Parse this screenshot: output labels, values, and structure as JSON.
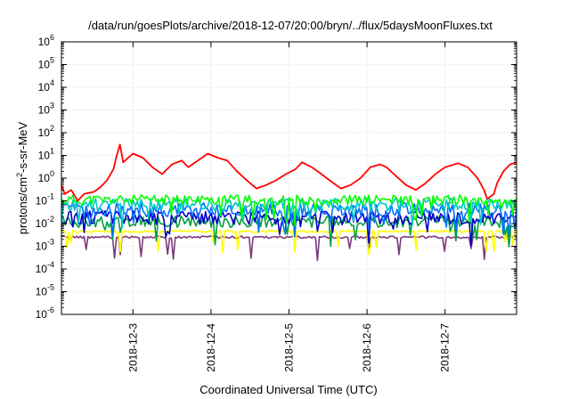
{
  "chart_data": {
    "type": "line",
    "title": "/data/run/goesPlots/archive/2018-12-07/20:00/bryn/../flux/5daysMoonFluxes.txt",
    "xlabel": "Coordinated Universal Time (UTC)",
    "ylabel": "protons/cm²-s-sr-MeV",
    "ylabel_parts": {
      "base": "protons/cm",
      "sup": "2",
      "rest": "-s-sr-MeV"
    },
    "yscale": "log",
    "ylim": [
      1e-06,
      1000000.0
    ],
    "y_ticks": [
      {
        "mant": "10",
        "exp": "-6",
        "v": -6
      },
      {
        "mant": "10",
        "exp": "-5",
        "v": -5
      },
      {
        "mant": "10",
        "exp": "-4",
        "v": -4
      },
      {
        "mant": "10",
        "exp": "-3",
        "v": -3
      },
      {
        "mant": "10",
        "exp": "-2",
        "v": -2
      },
      {
        "mant": "10",
        "exp": "-1",
        "v": -1
      },
      {
        "mant": "10",
        "exp": "0",
        "v": 0
      },
      {
        "mant": "10",
        "exp": "1",
        "v": 1
      },
      {
        "mant": "10",
        "exp": "2",
        "v": 2
      },
      {
        "mant": "10",
        "exp": "3",
        "v": 3
      },
      {
        "mant": "10",
        "exp": "4",
        "v": 4
      },
      {
        "mant": "10",
        "exp": "5",
        "v": 5
      },
      {
        "mant": "10",
        "exp": "6",
        "v": 6
      }
    ],
    "xlim": [
      "2018-12-02T02:00",
      "2018-12-07T22:00"
    ],
    "x_ticks": [
      "2018-12-3",
      "2018-12-4",
      "2018-12-5",
      "2018-12-6",
      "2018-12-7"
    ],
    "grid": true,
    "series": [
      {
        "color": "#ff0000",
        "points": [
          [
            "2018-12-02T02:00",
            0.5
          ],
          [
            "2018-12-02T03:00",
            0.2
          ],
          [
            "2018-12-02T05:00",
            0.3
          ],
          [
            "2018-12-02T07:00",
            0.1
          ],
          [
            "2018-12-02T09:00",
            0.2
          ],
          [
            "2018-12-02T12:00",
            0.25
          ],
          [
            "2018-12-02T14:00",
            0.4
          ],
          [
            "2018-12-02T16:00",
            0.8
          ],
          [
            "2018-12-02T18:00",
            2.5
          ],
          [
            "2018-12-02T19:00",
            10
          ],
          [
            "2018-12-02T20:00",
            30
          ],
          [
            "2018-12-02T21:00",
            5
          ],
          [
            "2018-12-03T00:00",
            12
          ],
          [
            "2018-12-03T03:00",
            8
          ],
          [
            "2018-12-03T06:00",
            3
          ],
          [
            "2018-12-03T09:00",
            1.5
          ],
          [
            "2018-12-03T12:00",
            4
          ],
          [
            "2018-12-03T15:00",
            6
          ],
          [
            "2018-12-03T17:00",
            3
          ],
          [
            "2018-12-03T20:00",
            6
          ],
          [
            "2018-12-03T23:00",
            12
          ],
          [
            "2018-12-04T02:00",
            8
          ],
          [
            "2018-12-04T05:00",
            6
          ],
          [
            "2018-12-04T08:00",
            2
          ],
          [
            "2018-12-04T11:00",
            0.8
          ],
          [
            "2018-12-04T14:00",
            0.35
          ],
          [
            "2018-12-04T17:00",
            0.5
          ],
          [
            "2018-12-04T20:00",
            0.8
          ],
          [
            "2018-12-04T23:00",
            1.5
          ],
          [
            "2018-12-05T02:00",
            2.5
          ],
          [
            "2018-12-05T04:00",
            5
          ],
          [
            "2018-12-05T07:00",
            3
          ],
          [
            "2018-12-05T10:00",
            1.5
          ],
          [
            "2018-12-05T13:00",
            0.7
          ],
          [
            "2018-12-05T16:00",
            0.35
          ],
          [
            "2018-12-05T19:00",
            0.5
          ],
          [
            "2018-12-05T22:00",
            1
          ],
          [
            "2018-12-06T01:00",
            3
          ],
          [
            "2018-12-06T04:00",
            4
          ],
          [
            "2018-12-06T06:00",
            3
          ],
          [
            "2018-12-06T09:00",
            1.2
          ],
          [
            "2018-12-06T12:00",
            0.5
          ],
          [
            "2018-12-06T15:00",
            0.3
          ],
          [
            "2018-12-06T18:00",
            0.6
          ],
          [
            "2018-12-06T21:00",
            1.5
          ],
          [
            "2018-12-07T00:00",
            3
          ],
          [
            "2018-12-07T04:00",
            4.5
          ],
          [
            "2018-12-07T07:00",
            3
          ],
          [
            "2018-12-07T10:00",
            1
          ],
          [
            "2018-12-07T12:00",
            0.3
          ],
          [
            "2018-12-07T13:00",
            0.12
          ],
          [
            "2018-12-07T15:00",
            0.2
          ],
          [
            "2018-12-07T16:00",
            0.6
          ],
          [
            "2018-12-07T18:00",
            2
          ],
          [
            "2018-12-07T20:00",
            4
          ],
          [
            "2018-12-07T22:00",
            5
          ]
        ]
      },
      {
        "color": "#00ff00",
        "base": 0.11,
        "amp": 0.22,
        "seed": 11
      },
      {
        "color": "#00c8c8",
        "base": 0.07,
        "amp": 0.28,
        "seed": 23
      },
      {
        "color": "#0070ff",
        "base": 0.04,
        "amp": 0.32,
        "seed": 37
      },
      {
        "color": "#0000c8",
        "base": 0.018,
        "amp": 0.3,
        "seed": 51
      },
      {
        "color": "#00a040",
        "base": 0.012,
        "amp": 0.25,
        "seed": 67
      },
      {
        "color": "#ffff00",
        "base": 0.0045,
        "amp": 0.05,
        "seed": 79
      },
      {
        "color": "#7a3a7a",
        "base": 0.0025,
        "amp": 0.05,
        "seed": 91
      }
    ]
  }
}
